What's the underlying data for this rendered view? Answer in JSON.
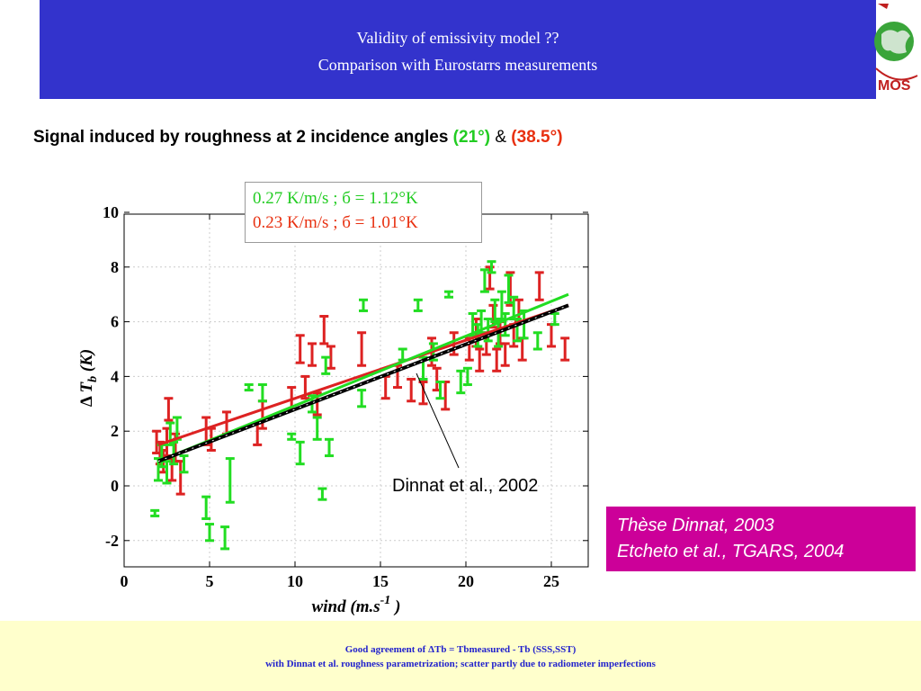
{
  "header": {
    "line1": "Validity of emissivity model ??",
    "line2": "Comparison with Eurostarrs  measurements"
  },
  "logo": {
    "text": "MOS",
    "icon": "earth-globe-logo-icon"
  },
  "subtitle": {
    "main": "Signal induced by roughness at 2 incidence angles ",
    "angle1": "(21°)",
    "amp": " & ",
    "angle2": "(38.5°)"
  },
  "colors": {
    "green": "#22dd22",
    "red": "#dd2222",
    "black": "#000000",
    "header_bg": "#3333cc",
    "thesis_bg": "#cc0099",
    "footer_bg": "#ffffcc",
    "footer_text": "#2222cc"
  },
  "legend": {
    "line1": "0.27 K/m/s ; б = 1.12°K",
    "line2": "0.23 K/m/s ; б = 1.01°K"
  },
  "dinnat_label": "Dinnat et al., 2002",
  "thesis": {
    "line1": "Thèse Dinnat, 2003",
    "line2": "Etcheto et al., TGARS, 2004"
  },
  "footer": {
    "line1": "Good agreement of ΔTb = Tbmeasured - Tb (SSS,SST)",
    "line2": "with Dinnat et al. roughness parametrization; scatter partly due to radiometer imperfections"
  },
  "chart_data": {
    "type": "scatter",
    "xlabel": "wind (m.s-1 )",
    "ylabel": "Δ Tb (K)",
    "xlim": [
      0,
      27
    ],
    "ylim": [
      -3,
      10
    ],
    "xticks": [
      0,
      5,
      10,
      15,
      20,
      25
    ],
    "yticks": [
      -2,
      0,
      2,
      4,
      6,
      8,
      10
    ],
    "grid": true,
    "series": [
      {
        "color": "red",
        "points": [
          [
            1.9,
            1.6,
            0.4
          ],
          [
            2.1,
            1.2,
            0.4
          ],
          [
            2.3,
            0.9,
            0.4
          ],
          [
            2.5,
            1.6,
            0.5
          ],
          [
            2.6,
            2.8,
            0.4
          ],
          [
            2.8,
            0.6,
            0.4
          ],
          [
            3.0,
            1.4,
            0.5
          ],
          [
            3.3,
            0.3,
            0.6
          ],
          [
            4.8,
            2.0,
            0.5
          ],
          [
            5.1,
            1.7,
            0.4
          ],
          [
            6.0,
            2.3,
            0.4
          ],
          [
            7.8,
            1.9,
            0.4
          ],
          [
            8.1,
            2.6,
            0.5
          ],
          [
            9.8,
            3.2,
            0.4
          ],
          [
            10.3,
            5.0,
            0.5
          ],
          [
            10.6,
            3.6,
            0.4
          ],
          [
            11.0,
            4.8,
            0.4
          ],
          [
            11.3,
            3.0,
            0.4
          ],
          [
            11.7,
            5.7,
            0.5
          ],
          [
            12.1,
            4.7,
            0.4
          ],
          [
            13.9,
            5.0,
            0.6
          ],
          [
            15.3,
            3.6,
            0.4
          ],
          [
            16.0,
            4.0,
            0.4
          ],
          [
            16.8,
            3.5,
            0.4
          ],
          [
            17.5,
            3.4,
            0.4
          ],
          [
            18.0,
            4.9,
            0.5
          ],
          [
            18.3,
            3.9,
            0.4
          ],
          [
            18.8,
            3.3,
            0.5
          ],
          [
            19.3,
            5.2,
            0.4
          ],
          [
            20.2,
            5.0,
            0.4
          ],
          [
            20.6,
            5.6,
            0.5
          ],
          [
            20.8,
            4.6,
            0.4
          ],
          [
            21.2,
            5.2,
            0.4
          ],
          [
            21.4,
            7.6,
            0.4
          ],
          [
            21.6,
            6.2,
            0.4
          ],
          [
            21.8,
            4.6,
            0.4
          ],
          [
            22.0,
            5.6,
            0.4
          ],
          [
            22.3,
            4.8,
            0.4
          ],
          [
            22.6,
            7.2,
            0.6
          ],
          [
            22.8,
            5.5,
            0.4
          ],
          [
            23.1,
            6.4,
            0.4
          ],
          [
            23.3,
            5.0,
            0.4
          ],
          [
            24.3,
            7.3,
            0.5
          ],
          [
            25.0,
            5.5,
            0.4
          ],
          [
            25.8,
            5.0,
            0.4
          ]
        ]
      },
      {
        "color": "green",
        "points": [
          [
            1.8,
            -1.0,
            0.1
          ],
          [
            2.0,
            0.6,
            0.4
          ],
          [
            2.2,
            1.1,
            0.4
          ],
          [
            2.5,
            0.5,
            0.4
          ],
          [
            2.7,
            1.9,
            0.4
          ],
          [
            2.9,
            1.2,
            0.4
          ],
          [
            3.1,
            2.1,
            0.4
          ],
          [
            3.5,
            0.8,
            0.3
          ],
          [
            4.8,
            -0.8,
            0.4
          ],
          [
            5.0,
            -1.7,
            0.3
          ],
          [
            5.9,
            -1.9,
            0.4
          ],
          [
            6.2,
            0.2,
            0.8
          ],
          [
            7.3,
            3.6,
            0.1
          ],
          [
            8.1,
            3.4,
            0.3
          ],
          [
            9.8,
            1.8,
            0.1
          ],
          [
            10.3,
            1.2,
            0.4
          ],
          [
            11.0,
            3.0,
            0.3
          ],
          [
            11.3,
            2.1,
            0.4
          ],
          [
            11.6,
            -0.3,
            0.2
          ],
          [
            11.8,
            4.4,
            0.3
          ],
          [
            12.0,
            1.4,
            0.3
          ],
          [
            13.9,
            3.2,
            0.3
          ],
          [
            14.0,
            6.6,
            0.2
          ],
          [
            16.3,
            4.8,
            0.2
          ],
          [
            17.2,
            6.6,
            0.2
          ],
          [
            17.5,
            4.3,
            0.4
          ],
          [
            18.1,
            4.9,
            0.3
          ],
          [
            18.5,
            3.5,
            0.3
          ],
          [
            19.0,
            7.0,
            0.1
          ],
          [
            19.7,
            3.8,
            0.4
          ],
          [
            20.1,
            4.0,
            0.3
          ],
          [
            20.4,
            5.9,
            0.4
          ],
          [
            20.7,
            5.5,
            0.4
          ],
          [
            20.9,
            6.0,
            0.4
          ],
          [
            21.1,
            7.5,
            0.4
          ],
          [
            21.3,
            5.7,
            0.4
          ],
          [
            21.5,
            8.0,
            0.2
          ],
          [
            21.7,
            6.4,
            0.4
          ],
          [
            21.9,
            5.6,
            0.5
          ],
          [
            22.1,
            6.6,
            0.5
          ],
          [
            22.3,
            5.9,
            0.4
          ],
          [
            22.5,
            7.2,
            0.5
          ],
          [
            22.8,
            6.5,
            0.4
          ],
          [
            23.0,
            5.7,
            0.4
          ],
          [
            23.4,
            5.9,
            0.5
          ],
          [
            24.2,
            5.3,
            0.3
          ],
          [
            25.2,
            6.1,
            0.2
          ]
        ]
      }
    ],
    "fit_lines": [
      {
        "color": "red",
        "x": [
          2,
          26
        ],
        "y": [
          1.5,
          6.6
        ]
      },
      {
        "color": "green",
        "x": [
          2,
          26
        ],
        "y": [
          0.9,
          7.0
        ]
      },
      {
        "color": "black",
        "x": [
          2,
          26
        ],
        "y": [
          0.9,
          6.6
        ]
      }
    ]
  }
}
